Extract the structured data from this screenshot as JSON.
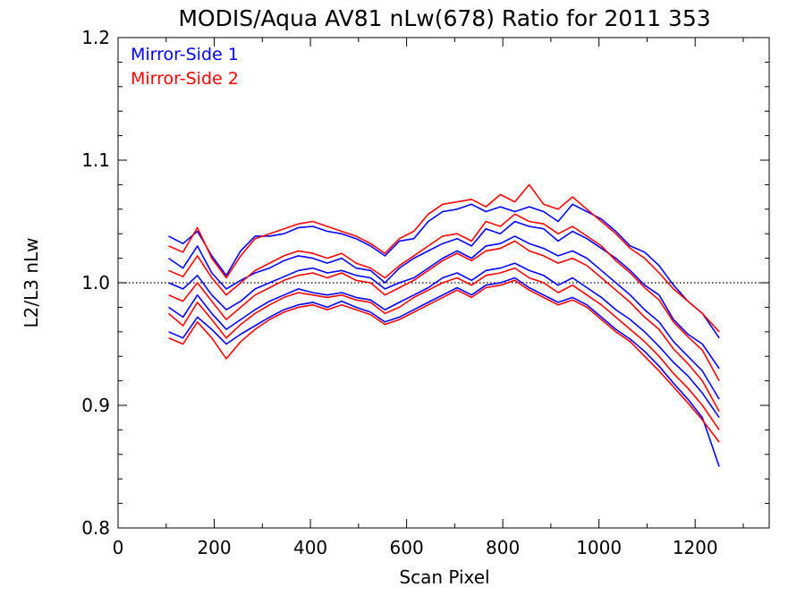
{
  "chart_data": {
    "type": "line",
    "title": "MODIS/Aqua AV81 nLw(678) Ratio for 2011 353",
    "xlabel": "Scan Pixel",
    "ylabel": "L2/L3 nLw",
    "xlim": [
      0,
      1354
    ],
    "ylim": [
      0.8,
      1.2
    ],
    "xticks": [
      0,
      200,
      400,
      600,
      800,
      1000,
      1200
    ],
    "xtick_labels": [
      "0",
      "200",
      "400",
      "600",
      "800",
      "1000",
      "1200"
    ],
    "yticks": [
      0.8,
      0.9,
      1.0,
      1.1,
      1.2
    ],
    "ytick_labels": [
      "0.8",
      "0.9",
      "1.0",
      "1.1",
      "1.2"
    ],
    "reference_line": 1.0,
    "legend_placement": "top-left",
    "colors": {
      "mirror_side_1": "#0000ff",
      "mirror_side_2": "#ff0000",
      "reference": "#000000"
    },
    "x": [
      105,
      135,
      165,
      195,
      225,
      255,
      285,
      315,
      345,
      375,
      405,
      435,
      465,
      495,
      525,
      555,
      585,
      615,
      645,
      675,
      705,
      735,
      765,
      795,
      825,
      855,
      885,
      915,
      945,
      975,
      1005,
      1035,
      1065,
      1095,
      1125,
      1155,
      1185,
      1215,
      1250
    ],
    "series": [
      {
        "name": "Mirror-Side 1",
        "color": "#0000ff",
        "values": [
          1.038,
          1.032,
          1.042,
          1.022,
          1.006,
          1.026,
          1.038,
          1.038,
          1.04,
          1.045,
          1.046,
          1.042,
          1.04,
          1.036,
          1.03,
          1.022,
          1.034,
          1.036,
          1.05,
          1.058,
          1.06,
          1.064,
          1.058,
          1.062,
          1.058,
          1.062,
          1.058,
          1.05,
          1.064,
          1.058,
          1.052,
          1.042,
          1.03,
          1.025,
          1.014,
          0.998,
          0.985,
          0.975,
          0.955
        ]
      },
      {
        "name": "Mirror-Side 1",
        "color": "#0000ff",
        "values": [
          1.02,
          1.012,
          1.03,
          1.008,
          0.995,
          1.002,
          1.008,
          1.012,
          1.018,
          1.022,
          1.02,
          1.016,
          1.02,
          1.012,
          1.01,
          1.0,
          1.012,
          1.02,
          1.026,
          1.032,
          1.036,
          1.03,
          1.044,
          1.04,
          1.05,
          1.046,
          1.044,
          1.034,
          1.042,
          1.036,
          1.028,
          1.02,
          1.01,
          0.998,
          0.99,
          0.97,
          0.958,
          0.95,
          0.93
        ]
      },
      {
        "name": "Mirror-Side 1",
        "color": "#0000ff",
        "values": [
          1.0,
          0.995,
          1.006,
          0.99,
          0.978,
          0.985,
          0.995,
          1.0,
          1.005,
          1.01,
          1.012,
          1.008,
          1.01,
          1.006,
          1.004,
          0.995,
          1.0,
          1.004,
          1.012,
          1.02,
          1.026,
          1.02,
          1.03,
          1.032,
          1.038,
          1.032,
          1.028,
          1.022,
          1.026,
          1.02,
          1.01,
          1.0,
          0.99,
          0.978,
          0.968,
          0.952,
          0.94,
          0.928,
          0.905
        ]
      },
      {
        "name": "Mirror-Side 1",
        "color": "#0000ff",
        "values": [
          0.98,
          0.972,
          0.99,
          0.975,
          0.962,
          0.97,
          0.978,
          0.985,
          0.99,
          0.995,
          0.992,
          0.99,
          0.992,
          0.988,
          0.986,
          0.978,
          0.984,
          0.99,
          0.996,
          1.004,
          1.008,
          1.002,
          1.01,
          1.012,
          1.016,
          1.01,
          1.006,
          0.998,
          1.004,
          0.996,
          0.988,
          0.978,
          0.97,
          0.96,
          0.948,
          0.935,
          0.924,
          0.91,
          0.89
        ]
      },
      {
        "name": "Mirror-Side 1",
        "color": "#0000ff",
        "values": [
          0.96,
          0.955,
          0.972,
          0.962,
          0.95,
          0.958,
          0.965,
          0.972,
          0.978,
          0.982,
          0.984,
          0.98,
          0.985,
          0.98,
          0.976,
          0.968,
          0.972,
          0.978,
          0.984,
          0.99,
          0.996,
          0.99,
          0.998,
          1.0,
          1.004,
          0.996,
          0.99,
          0.984,
          0.988,
          0.982,
          0.972,
          0.962,
          0.954,
          0.944,
          0.932,
          0.918,
          0.905,
          0.89,
          0.85
        ]
      },
      {
        "name": "Mirror-Side 2",
        "color": "#ff0000",
        "values": [
          1.03,
          1.025,
          1.045,
          1.02,
          1.004,
          1.022,
          1.036,
          1.04,
          1.044,
          1.048,
          1.05,
          1.046,
          1.042,
          1.038,
          1.032,
          1.024,
          1.036,
          1.042,
          1.056,
          1.064,
          1.066,
          1.068,
          1.062,
          1.072,
          1.066,
          1.08,
          1.064,
          1.06,
          1.07,
          1.06,
          1.05,
          1.04,
          1.028,
          1.02,
          1.008,
          0.995,
          0.985,
          0.975,
          0.96
        ]
      },
      {
        "name": "Mirror-Side 2",
        "color": "#ff0000",
        "values": [
          1.01,
          1.005,
          1.022,
          1.004,
          0.99,
          1.0,
          1.01,
          1.016,
          1.022,
          1.026,
          1.024,
          1.02,
          1.024,
          1.016,
          1.012,
          1.004,
          1.014,
          1.022,
          1.03,
          1.038,
          1.04,
          1.034,
          1.05,
          1.046,
          1.056,
          1.05,
          1.048,
          1.04,
          1.046,
          1.038,
          1.03,
          1.018,
          1.008,
          0.996,
          0.986,
          0.968,
          0.956,
          0.945,
          0.92
        ]
      },
      {
        "name": "Mirror-Side 2",
        "color": "#ff0000",
        "values": [
          0.99,
          0.985,
          1.0,
          0.985,
          0.97,
          0.98,
          0.99,
          0.996,
          1.002,
          1.006,
          1.008,
          1.004,
          1.008,
          1.002,
          1.0,
          0.99,
          0.996,
          1.002,
          1.01,
          1.018,
          1.024,
          1.018,
          1.026,
          1.028,
          1.034,
          1.026,
          1.022,
          1.016,
          1.02,
          1.014,
          1.004,
          0.994,
          0.984,
          0.972,
          0.962,
          0.946,
          0.934,
          0.92,
          0.895
        ]
      },
      {
        "name": "Mirror-Side 2",
        "color": "#ff0000",
        "values": [
          0.975,
          0.965,
          0.984,
          0.97,
          0.955,
          0.966,
          0.975,
          0.982,
          0.988,
          0.992,
          0.99,
          0.988,
          0.99,
          0.986,
          0.984,
          0.975,
          0.98,
          0.988,
          0.994,
          1.0,
          1.004,
          0.998,
          1.006,
          1.008,
          1.012,
          1.004,
          1.0,
          0.992,
          0.998,
          0.99,
          0.982,
          0.972,
          0.962,
          0.952,
          0.94,
          0.926,
          0.914,
          0.9,
          0.88
        ]
      },
      {
        "name": "Mirror-Side 2",
        "color": "#ff0000",
        "values": [
          0.955,
          0.95,
          0.968,
          0.955,
          0.938,
          0.952,
          0.962,
          0.97,
          0.976,
          0.98,
          0.982,
          0.978,
          0.982,
          0.978,
          0.974,
          0.966,
          0.97,
          0.976,
          0.982,
          0.988,
          0.994,
          0.988,
          0.996,
          0.998,
          1.002,
          0.994,
          0.988,
          0.982,
          0.986,
          0.98,
          0.97,
          0.96,
          0.952,
          0.94,
          0.928,
          0.915,
          0.902,
          0.888,
          0.87
        ]
      }
    ]
  }
}
